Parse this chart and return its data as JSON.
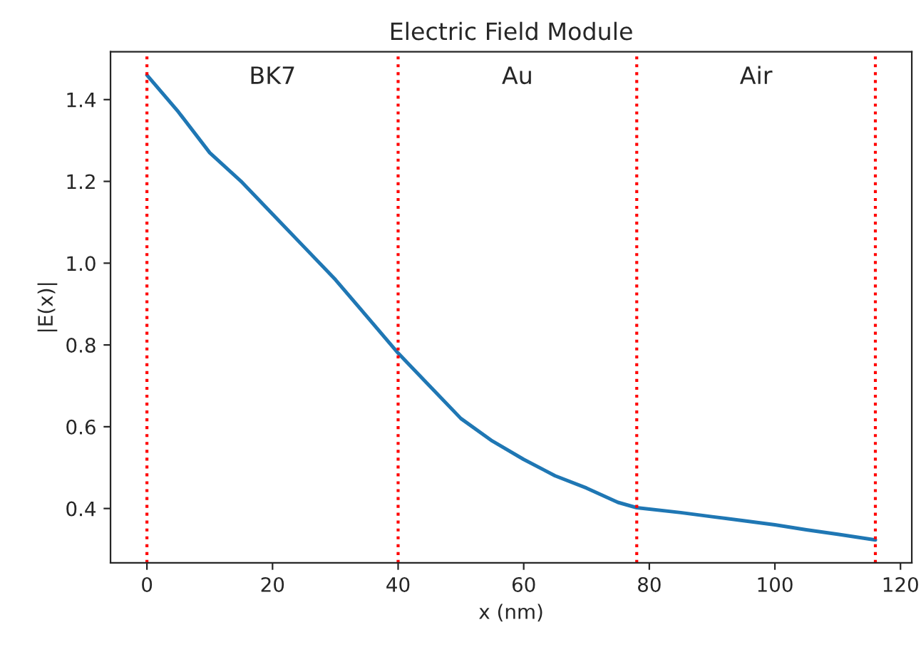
{
  "chart_data": {
    "type": "line",
    "title": "Electric Field Module",
    "xlabel": "x (nm)",
    "ylabel": "|E(x)|",
    "x": [
      0,
      5,
      10,
      15,
      20,
      25,
      30,
      35,
      40,
      45,
      50,
      55,
      60,
      65,
      70,
      75,
      78,
      85,
      90,
      95,
      100,
      105,
      110,
      116
    ],
    "series": [
      {
        "color": "#1f77b4",
        "values": [
          1.46,
          1.37,
          1.27,
          1.2,
          1.12,
          1.04,
          0.96,
          0.87,
          0.78,
          0.7,
          0.62,
          0.565,
          0.52,
          0.48,
          0.45,
          0.415,
          0.402,
          0.39,
          0.38,
          0.37,
          0.36,
          0.348,
          0.337,
          0.323
        ]
      }
    ],
    "xlim": [
      -5.8,
      121.8
    ],
    "ylim": [
      0.267,
      1.517
    ],
    "xticks": [
      0,
      20,
      40,
      60,
      80,
      100,
      120
    ],
    "yticks": [
      {
        "value": 0.4,
        "label": "0.4"
      },
      {
        "value": 0.6,
        "label": "0.6"
      },
      {
        "value": 0.8,
        "label": "0.8"
      },
      {
        "value": 1.0,
        "label": "1.0"
      },
      {
        "value": 1.2,
        "label": "1.2"
      },
      {
        "value": 1.4,
        "label": "1.4"
      }
    ],
    "ref_lines": [
      {
        "axis": "x",
        "value": 0,
        "color": "#ff0000",
        "line_style": "dotted"
      },
      {
        "axis": "x",
        "value": 40,
        "color": "#ff0000",
        "line_style": "dotted"
      },
      {
        "axis": "x",
        "value": 78,
        "color": "#ff0000",
        "line_style": "dotted"
      },
      {
        "axis": "x",
        "value": 116,
        "color": "#ff0000",
        "line_style": "dotted"
      }
    ],
    "annotations": [
      "BK7",
      "Au",
      "Air"
    ],
    "grid": false,
    "legend": false,
    "marker": "none",
    "line_style": "solid"
  }
}
